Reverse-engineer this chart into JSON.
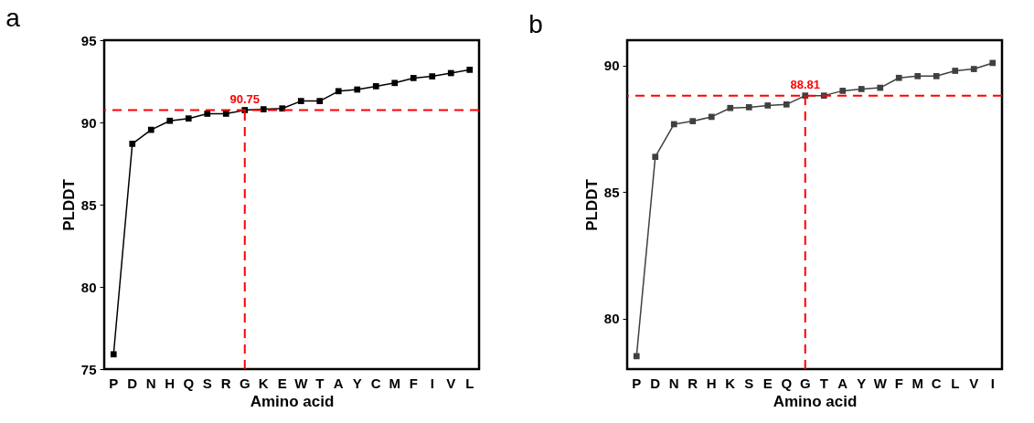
{
  "chart_data": [
    {
      "type": "line",
      "title": "a",
      "xlabel": "Amino acid",
      "ylabel": "PLDDT",
      "categories": [
        "P",
        "D",
        "N",
        "H",
        "Q",
        "S",
        "R",
        "G",
        "K",
        "E",
        "W",
        "T",
        "A",
        "Y",
        "C",
        "M",
        "F",
        "I",
        "V",
        "L"
      ],
      "series": [
        {
          "color": "#000000",
          "values": [
            75.9,
            88.7,
            89.55,
            90.1,
            90.24,
            90.53,
            90.53,
            90.75,
            90.8,
            90.85,
            91.3,
            91.3,
            91.9,
            92.0,
            92.2,
            92.4,
            92.7,
            92.8,
            93.0,
            93.2
          ]
        }
      ],
      "ylim": [
        75,
        95
      ],
      "yticks": [
        75,
        80,
        85,
        90,
        95
      ],
      "grid": false,
      "marker": "square",
      "line_style": "solid",
      "ref_lines": [
        {
          "axis": "y",
          "value": 90.75,
          "color": "#ff0000",
          "line_style": "dashed"
        },
        {
          "axis": "x",
          "value": "G",
          "color": "#ff0000",
          "line_style": "dashed"
        }
      ],
      "annotations": [
        {
          "text": "90.75",
          "x": "G",
          "y": 90.75
        }
      ]
    },
    {
      "type": "line",
      "title": "b",
      "xlabel": "Amino acid",
      "ylabel": "PLDDT",
      "categories": [
        "P",
        "D",
        "N",
        "R",
        "H",
        "K",
        "S",
        "E",
        "Q",
        "G",
        "T",
        "A",
        "Y",
        "W",
        "F",
        "M",
        "C",
        "L",
        "V",
        "I"
      ],
      "series": [
        {
          "color": "#404040",
          "values": [
            78.51,
            86.39,
            87.68,
            87.8,
            87.97,
            88.32,
            88.35,
            88.42,
            88.46,
            88.81,
            88.81,
            89.0,
            89.07,
            89.12,
            89.51,
            89.58,
            89.58,
            89.79,
            89.86,
            90.1
          ]
        }
      ],
      "ylim": [
        78,
        91
      ],
      "yticks": [
        80,
        85,
        90
      ],
      "grid": false,
      "marker": "square",
      "line_style": "solid",
      "ref_lines": [
        {
          "axis": "y",
          "value": 88.81,
          "color": "#ff0000",
          "line_style": "dashed"
        },
        {
          "axis": "x",
          "value": "G",
          "color": "#ff0000",
          "line_style": "dashed"
        }
      ],
      "annotations": [
        {
          "text": "88.81",
          "x": "G",
          "y": 88.81
        }
      ]
    }
  ]
}
